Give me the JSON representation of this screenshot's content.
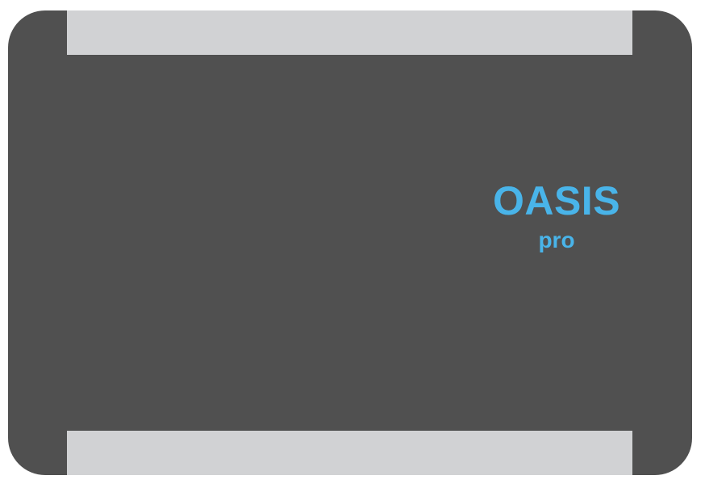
{
  "device": {
    "body_color": "#505050",
    "strip_color": "#d1d2d4",
    "logo_color": "#49b4e9"
  },
  "logo": {
    "brand": "OASIS",
    "edition": "pro"
  }
}
